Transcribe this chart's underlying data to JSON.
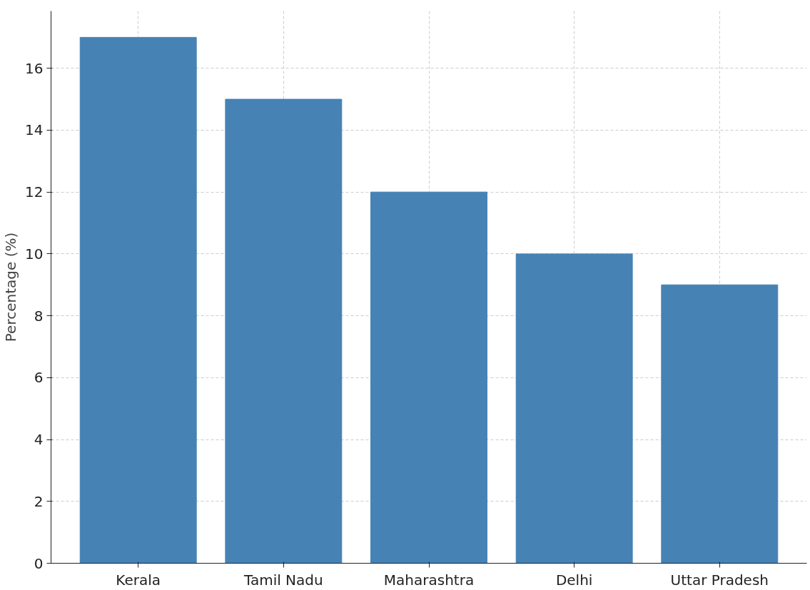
{
  "chart_data": {
    "type": "bar",
    "ylabel": "Percentage (%)",
    "categories": [
      "Kerala",
      "Tamil Nadu",
      "Maharashtra",
      "Delhi",
      "Uttar Pradesh"
    ],
    "values": [
      17,
      15,
      12,
      10,
      9
    ],
    "color": "#4682b4",
    "ylim": [
      0,
      17.85
    ],
    "yticks": [
      0,
      2,
      4,
      6,
      8,
      10,
      12,
      14,
      16
    ],
    "grid": true
  }
}
